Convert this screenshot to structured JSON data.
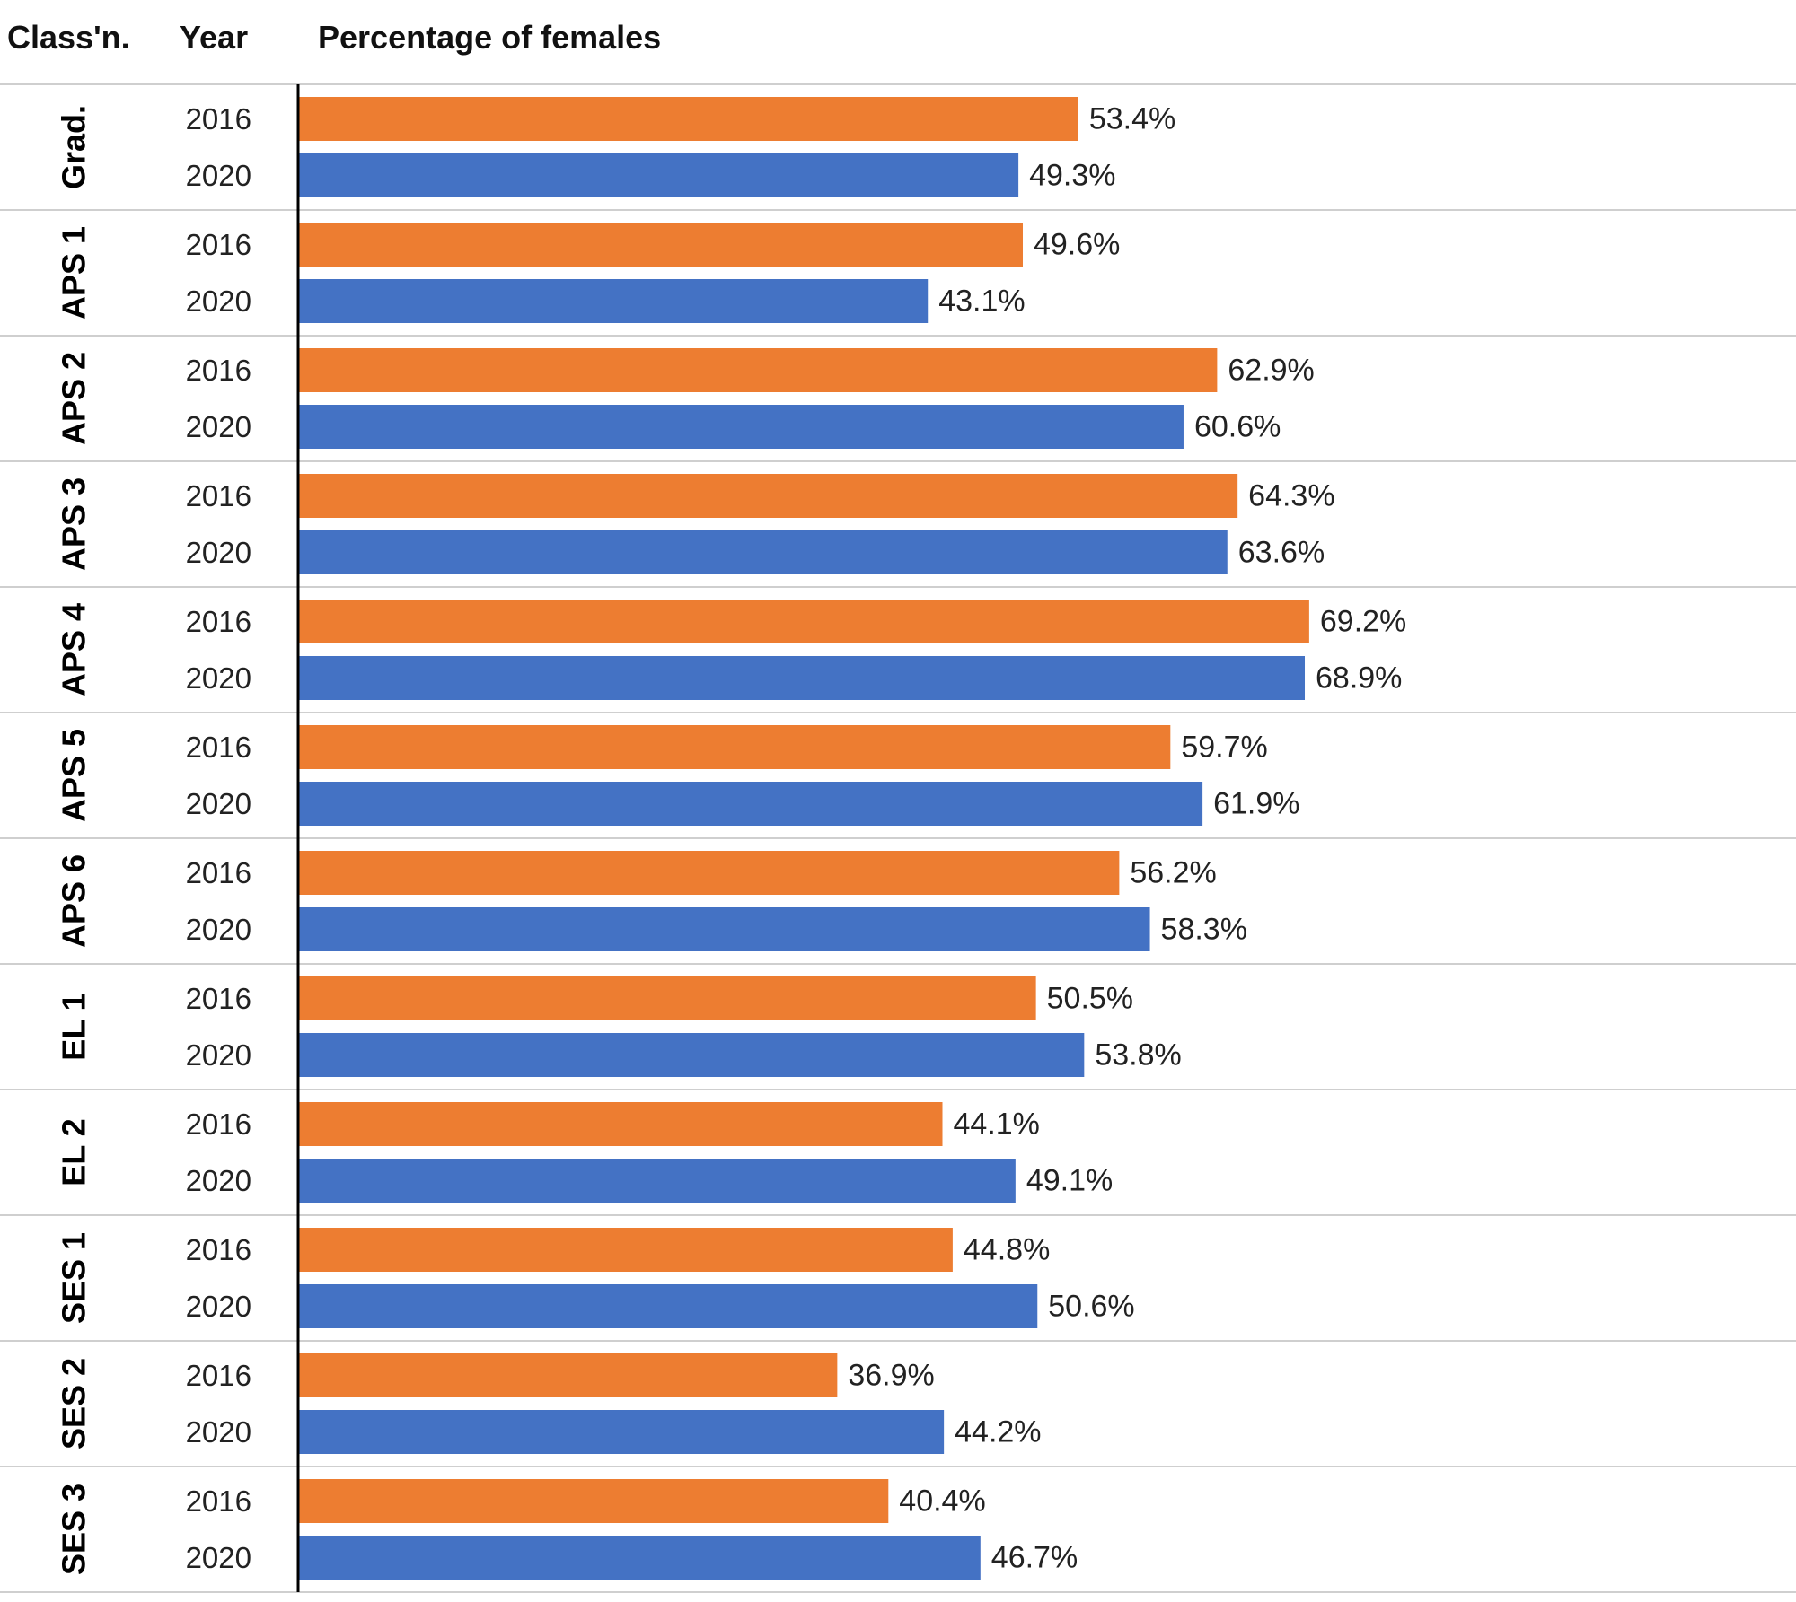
{
  "chart_data": {
    "type": "bar",
    "orientation": "horizontal",
    "headers": {
      "classification": "Class'n.",
      "year": "Year",
      "value": "Percentage of females"
    },
    "categories": [
      "Grad.",
      "APS 1",
      "APS 2",
      "APS 3",
      "APS 4",
      "APS 5",
      "APS 6",
      "EL 1",
      "EL 2",
      "SES 1",
      "SES 2",
      "SES 3"
    ],
    "series": [
      {
        "name": "2016",
        "color": "#ED7D31",
        "values": [
          53.4,
          49.6,
          62.9,
          64.3,
          69.2,
          59.7,
          56.2,
          50.5,
          44.1,
          44.8,
          36.9,
          40.4
        ],
        "labels": [
          "53.4%",
          "49.6%",
          "62.9%",
          "64.3%",
          "69.2%",
          "59.7%",
          "56.2%",
          "50.5%",
          "44.1%",
          "44.8%",
          "36.9%",
          "40.4%"
        ]
      },
      {
        "name": "2020",
        "color": "#4472C4",
        "values": [
          49.3,
          43.1,
          60.6,
          63.6,
          68.9,
          61.9,
          58.3,
          53.8,
          49.1,
          50.6,
          44.2,
          46.7
        ],
        "labels": [
          "49.3%",
          "43.1%",
          "60.6%",
          "63.6%",
          "68.9%",
          "61.9%",
          "58.3%",
          "53.8%",
          "49.1%",
          "50.6%",
          "44.2%",
          "46.7%"
        ]
      }
    ],
    "xlim": [
      0,
      100
    ],
    "unit": "%"
  }
}
